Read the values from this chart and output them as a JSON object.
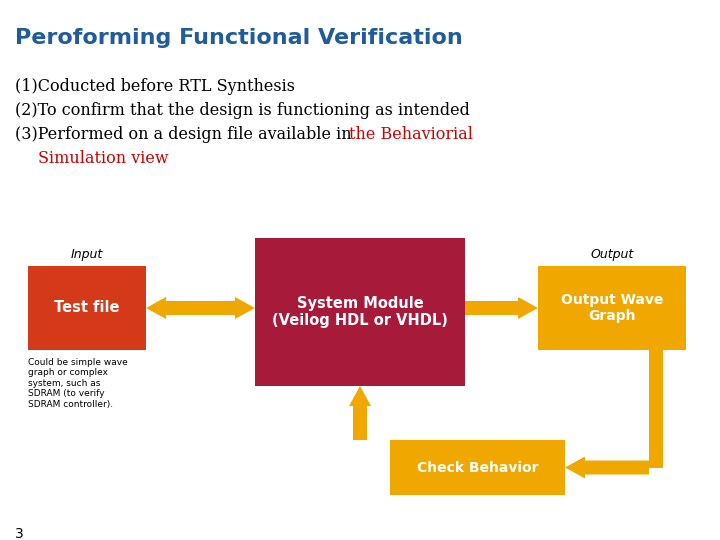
{
  "title": "Peroforming Functional Verification",
  "title_color": "#1F5C99",
  "title_fontsize": 16,
  "bg_color": "#FFFFFF",
  "line1": "(1)Coducted before RTL Synthesis",
  "line2": "(2)To confirm that the design is functioning as intended",
  "line3_black": "(3)Performed on a design file available in ",
  "line3_red": "the Behaviorial",
  "line4_red": "Simulation view",
  "body_color": "#000000",
  "body_fontsize": 11.5,
  "red_color": "#CC0000",
  "label_input": "Input",
  "label_output": "Output",
  "box_test_file_label": "Test file",
  "box_test_file_color": "#D43A1A",
  "box_system_label": "System Module\n(Veilog HDL or VHDL)",
  "box_system_color": "#A81A3A",
  "box_output_label": "Output Wave\nGraph",
  "box_output_color": "#F0A800",
  "box_check_label": "Check Behavior",
  "box_check_color": "#F0A800",
  "arrow_color": "#F0A800",
  "note_text": "Could be simple wave\ngraph or complex\nsystem, such as\nSDRAM (to verify\nSDRAM controller).",
  "note_fontsize": 6.5,
  "page_number": "3"
}
